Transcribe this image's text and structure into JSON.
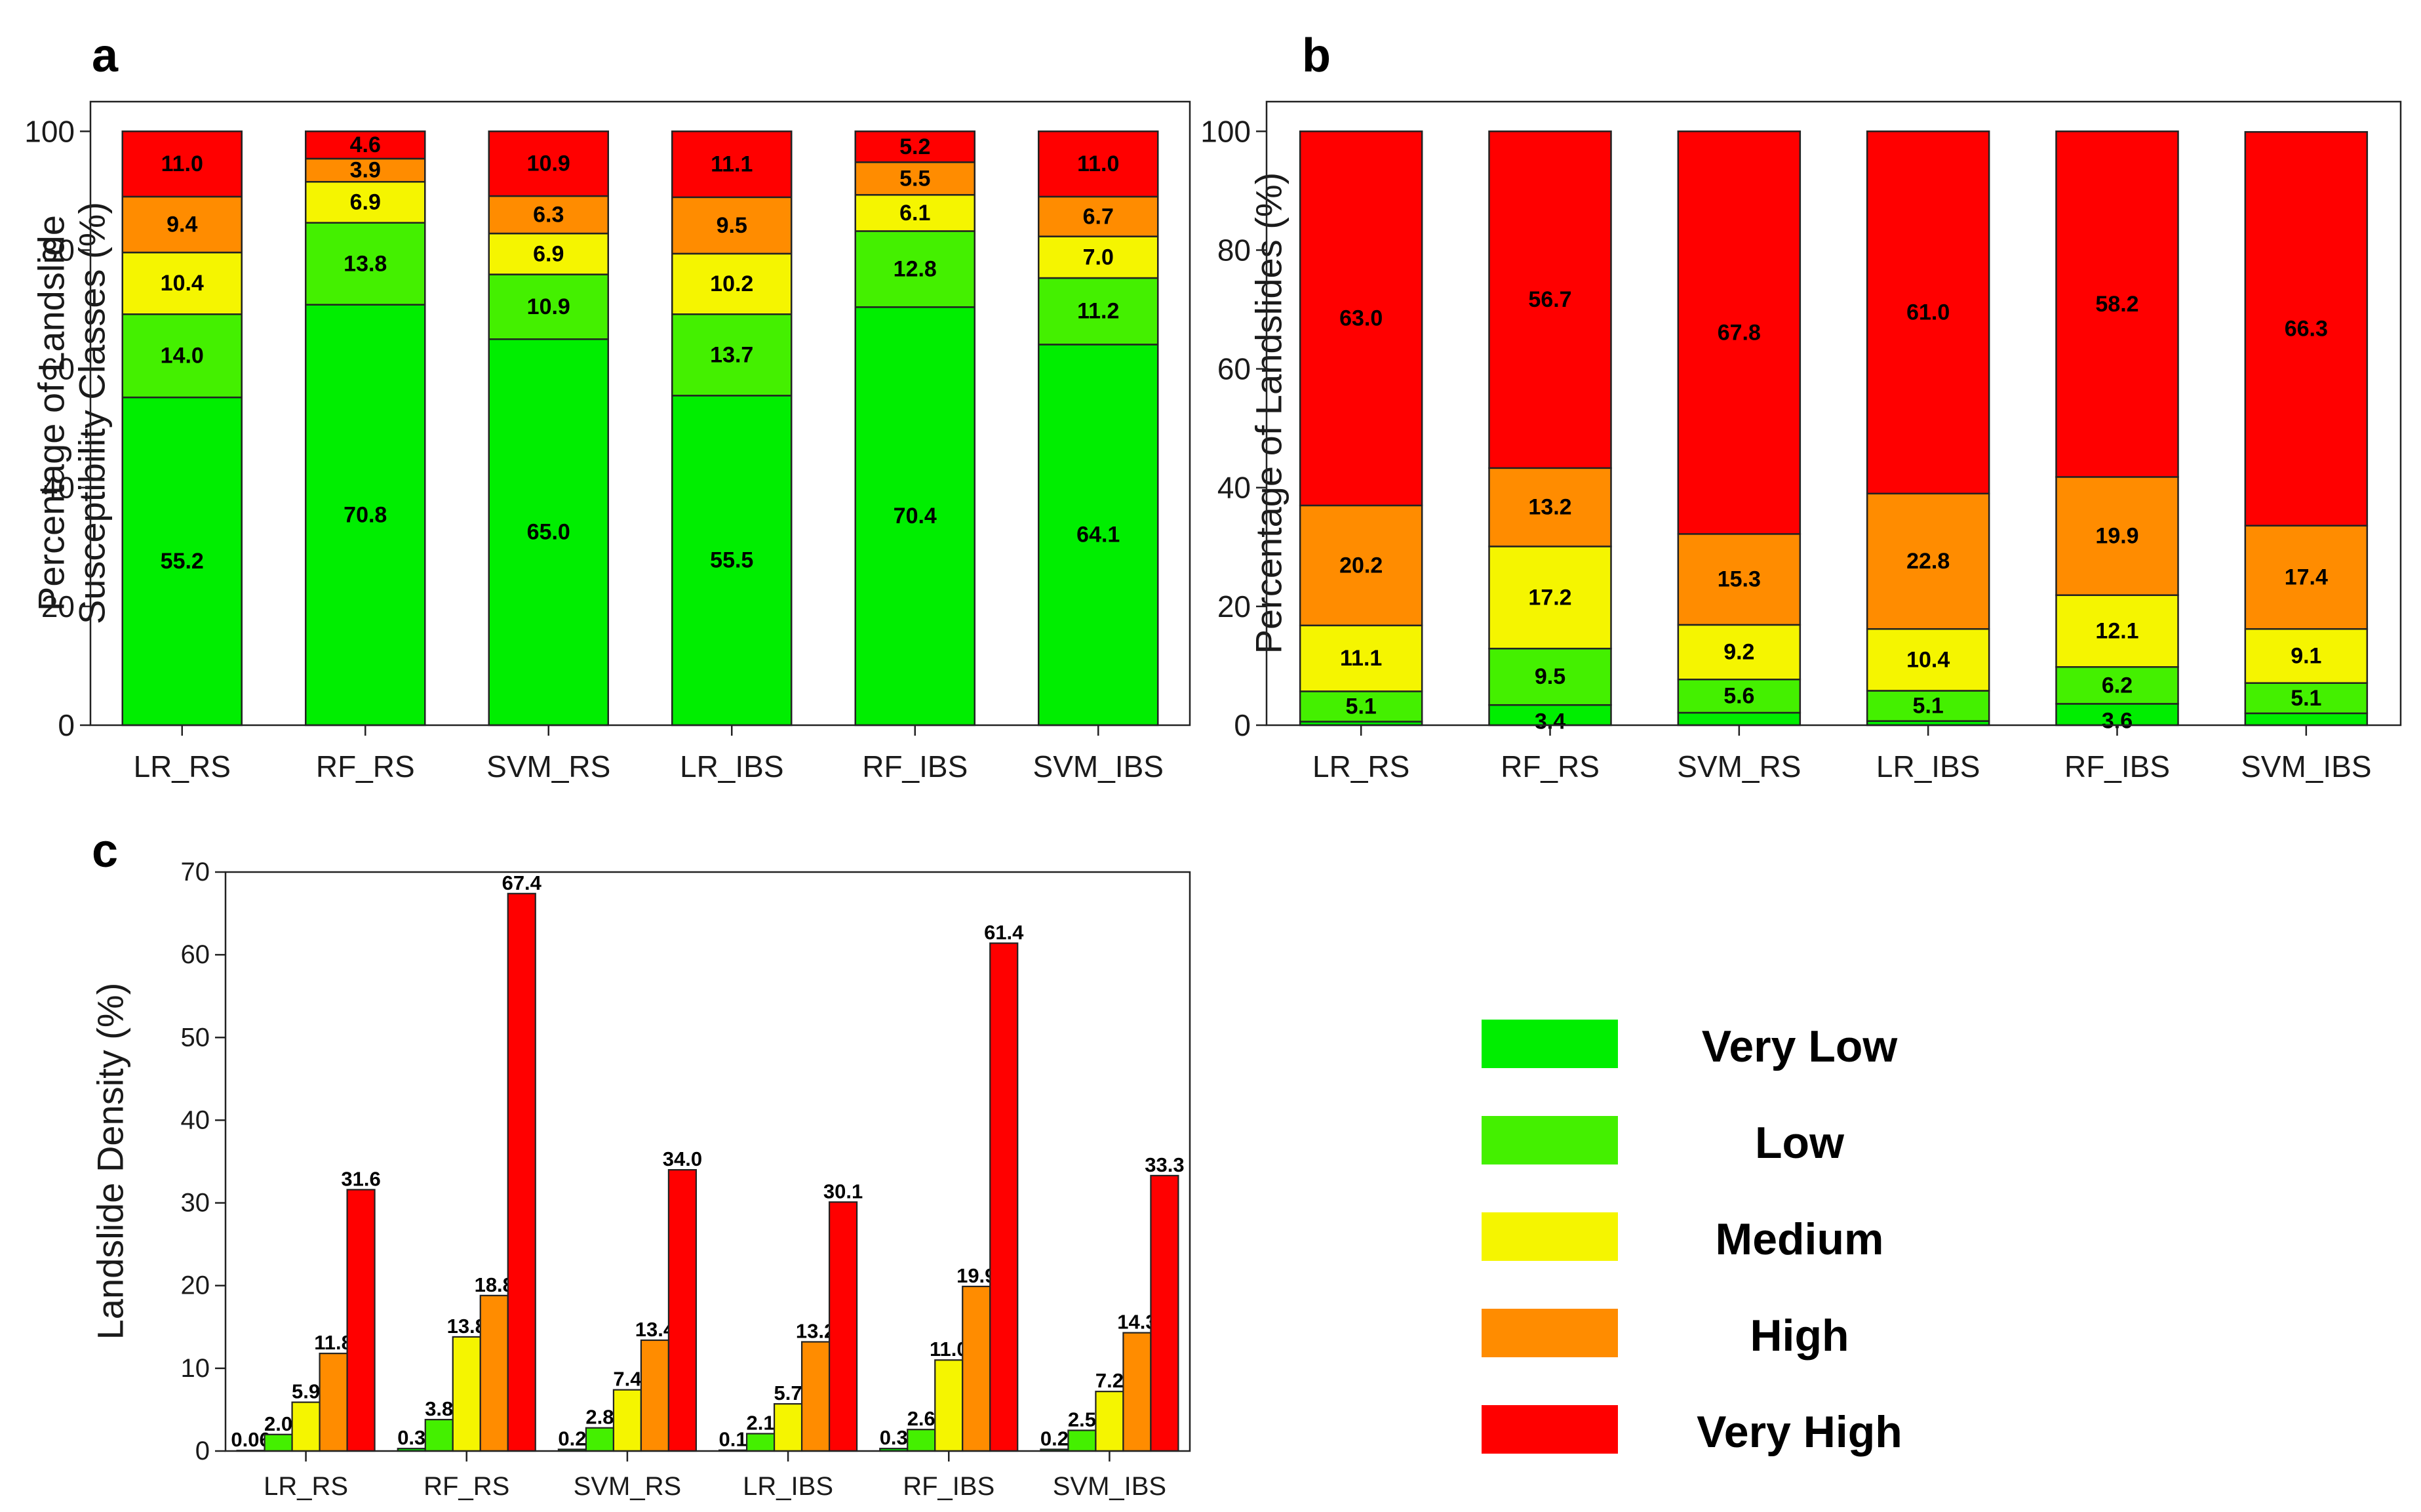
{
  "colors": {
    "Very Low": "#00ee00",
    "Low": "#44f000",
    "Medium": "#f5f500",
    "High": "#ff8c00",
    "Very High": "#ff0000"
  },
  "legend": {
    "items": [
      "Very Low",
      "Low",
      "Medium",
      "High",
      "Very High"
    ]
  },
  "chart_data": [
    {
      "panel": "a",
      "type": "bar",
      "stacked": true,
      "categories": [
        "LR_RS",
        "RF_RS",
        "SVM_RS",
        "LR_IBS",
        "RF_IBS",
        "SVM_IBS"
      ],
      "series": [
        {
          "name": "Very Low",
          "values": [
            55.2,
            70.8,
            65.0,
            55.5,
            70.4,
            64.1
          ],
          "labels": [
            "55.2",
            "70.8",
            "65.0",
            "55.5",
            "70.4",
            "64.1"
          ]
        },
        {
          "name": "Low",
          "values": [
            14.0,
            13.8,
            10.9,
            13.7,
            12.8,
            11.2
          ],
          "labels": [
            "14.0",
            "13.8",
            "10.9",
            "13.7",
            "12.8",
            "11.2"
          ]
        },
        {
          "name": "Medium",
          "values": [
            10.4,
            6.9,
            6.9,
            10.2,
            6.1,
            7.0
          ],
          "labels": [
            "10.4",
            "6.9",
            "6.9",
            "10.2",
            "6.1",
            "7.0"
          ]
        },
        {
          "name": "High",
          "values": [
            9.4,
            3.9,
            6.3,
            9.5,
            5.5,
            6.7
          ],
          "labels": [
            "9.4",
            "3.9",
            "6.3",
            "9.5",
            "5.5",
            "6.7"
          ]
        },
        {
          "name": "Very High",
          "values": [
            11.0,
            4.6,
            10.9,
            11.1,
            5.2,
            11.0
          ],
          "labels": [
            "11.0",
            "4.6",
            "10.9",
            "11.1",
            "5.2",
            "11.0"
          ]
        }
      ],
      "ylabel": [
        "Percentage of Landslide",
        "Susceptibility Classes (%)"
      ],
      "ylim": [
        0,
        105
      ],
      "yticks": [
        0,
        20,
        40,
        60,
        80,
        100
      ],
      "grid": false
    },
    {
      "panel": "b",
      "type": "bar",
      "stacked": true,
      "categories": [
        "LR_RS",
        "RF_RS",
        "SVM_RS",
        "LR_IBS",
        "RF_IBS",
        "SVM_IBS"
      ],
      "series": [
        {
          "name": "Very Low",
          "values": [
            0.6,
            3.4,
            2.1,
            0.7,
            3.6,
            2.0
          ],
          "labels": [
            "",
            "",
            "",
            "",
            "",
            ""
          ]
        },
        {
          "name": "Low",
          "values": [
            5.1,
            9.5,
            5.6,
            5.1,
            6.2,
            5.1
          ],
          "labels": [
            "5.1",
            "9.5",
            "5.6",
            "5.1",
            "6.2",
            "5.1"
          ]
        },
        {
          "name": "Medium",
          "values": [
            11.1,
            17.2,
            9.2,
            10.4,
            12.1,
            9.1
          ],
          "labels": [
            "11.1",
            "17.2",
            "9.2",
            "10.4",
            "12.1",
            "9.1"
          ]
        },
        {
          "name": "High",
          "values": [
            20.2,
            13.2,
            15.3,
            22.8,
            19.9,
            17.4
          ],
          "labels": [
            "20.2",
            "13.2",
            "15.3",
            "22.8",
            "19.9",
            "17.4"
          ]
        },
        {
          "name": "Very High",
          "values": [
            63.0,
            56.7,
            67.8,
            61.0,
            58.2,
            66.3
          ],
          "labels": [
            "63.0",
            "56.7",
            "67.8",
            "61.0",
            "58.2",
            "66.3"
          ]
        }
      ],
      "extra_labels": [
        {
          "category": "RF_RS",
          "text": "3.4",
          "value": 3.4
        },
        {
          "category": "RF_IBS",
          "text": "3.6",
          "value": 3.6
        }
      ],
      "ylabel": [
        "Percentage of Landslides (%)"
      ],
      "ylim": [
        0,
        105
      ],
      "yticks": [
        0,
        20,
        40,
        60,
        80,
        100
      ],
      "grid": false
    },
    {
      "panel": "c",
      "type": "bar",
      "stacked": false,
      "categories": [
        "LR_RS",
        "RF_RS",
        "SVM_RS",
        "LR_IBS",
        "RF_IBS",
        "SVM_IBS"
      ],
      "series": [
        {
          "name": "Very Low",
          "values": [
            0.06,
            0.3,
            0.2,
            0.1,
            0.3,
            0.2
          ],
          "labels": [
            "0.06",
            "0.3",
            "0.2",
            "0.1",
            "0.3",
            "0.2"
          ]
        },
        {
          "name": "Low",
          "values": [
            2.0,
            3.8,
            2.8,
            2.1,
            2.6,
            2.5
          ],
          "labels": [
            "2.0",
            "3.8",
            "2.8",
            "2.1",
            "2.6",
            "2.5"
          ]
        },
        {
          "name": "Medium",
          "values": [
            5.9,
            13.8,
            7.4,
            5.7,
            11.0,
            7.2
          ],
          "labels": [
            "5.9",
            "13.8",
            "7.4",
            "5.7",
            "11.0",
            "7.2"
          ]
        },
        {
          "name": "High",
          "values": [
            11.8,
            18.8,
            13.4,
            13.2,
            19.9,
            14.3
          ],
          "labels": [
            "11.8",
            "18.8",
            "13.4",
            "13.2",
            "19.9",
            "14.3"
          ]
        },
        {
          "name": "Very High",
          "values": [
            31.6,
            67.4,
            34.0,
            30.1,
            61.4,
            33.3
          ],
          "labels": [
            "31.6",
            "67.4",
            "34.0",
            "30.1",
            "61.4",
            "33.3"
          ]
        }
      ],
      "ylabel": [
        "Landslide Density (%)"
      ],
      "ylim": [
        0,
        70
      ],
      "yticks": [
        0,
        10,
        20,
        30,
        40,
        50,
        60,
        70
      ],
      "grid": false
    }
  ]
}
